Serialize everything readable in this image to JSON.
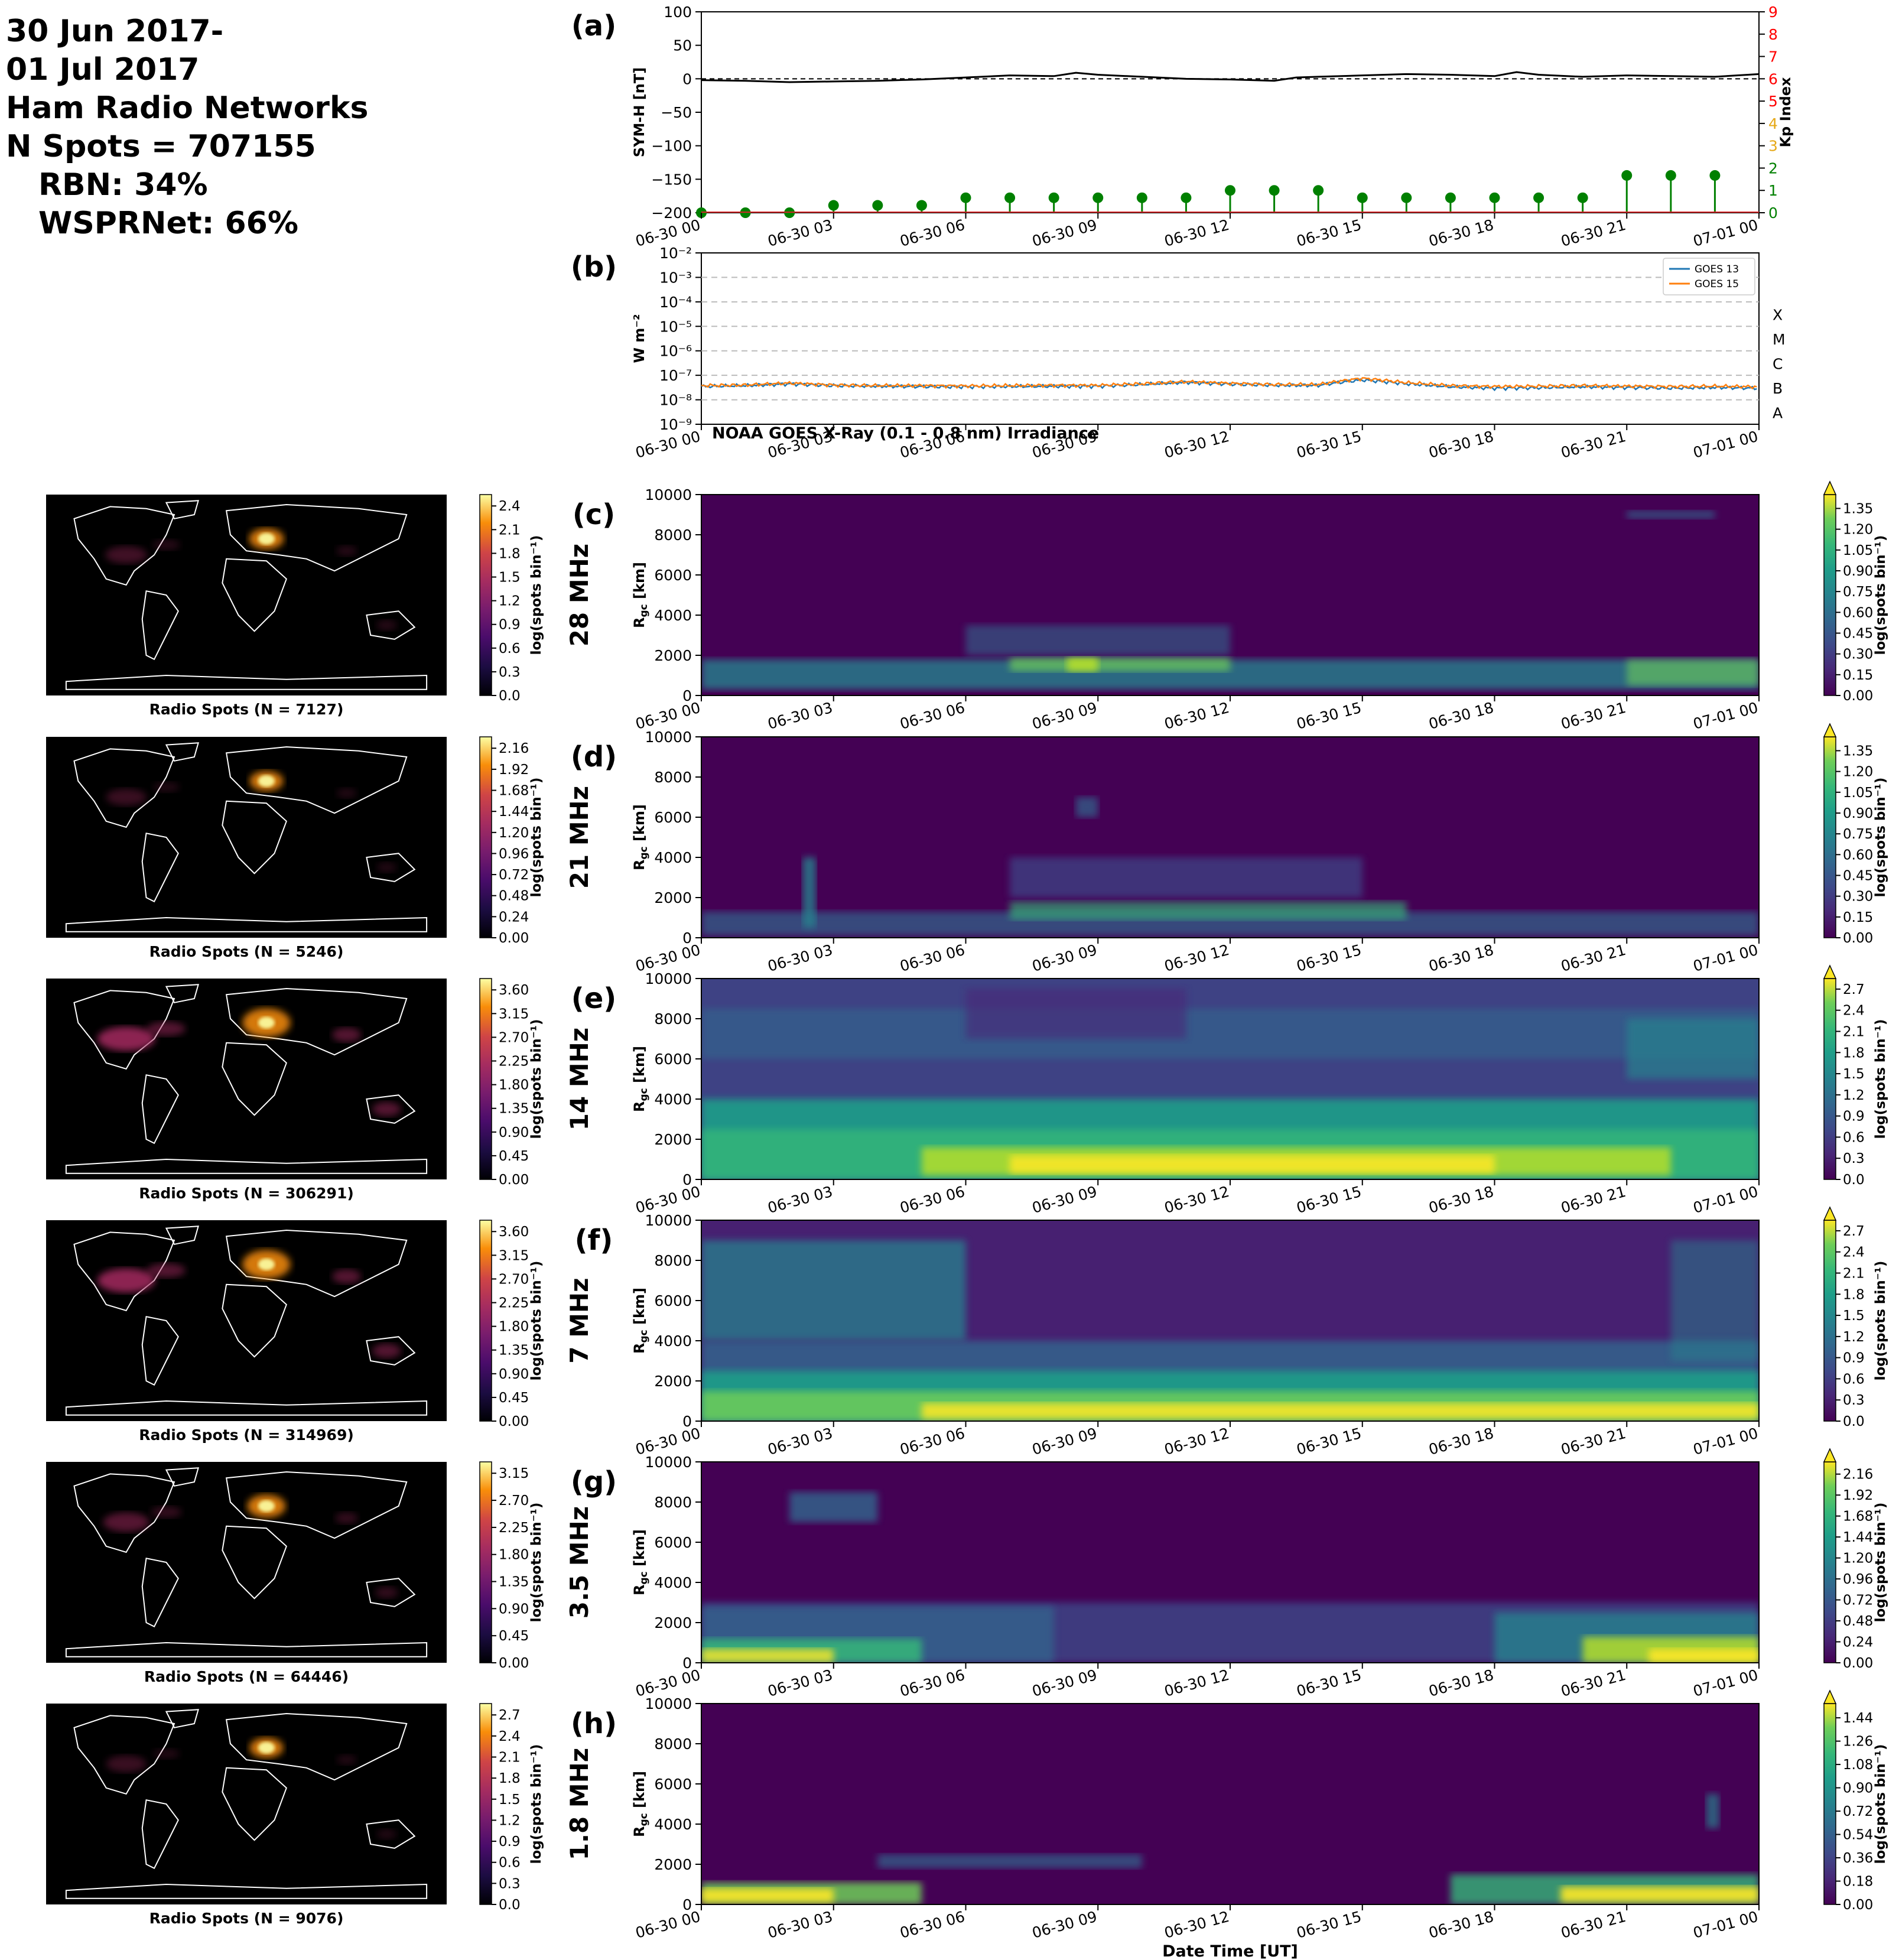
{
  "header": {
    "lines": [
      "30 Jun 2017-",
      "01 Jul 2017",
      "Ham Radio Networks",
      "N Spots = 707155",
      "RBN: 34%",
      "WSPRNet: 66%"
    ]
  },
  "colors": {
    "symh_line": "#000000",
    "kp_green": "#008000",
    "kp_axis_red": "#ff0000",
    "goes13": "#1f77b4",
    "goes15": "#ff7f0e",
    "map_coast": "#ffffff",
    "map_bg": "#000000"
  },
  "time_axis": {
    "tick_labels": [
      "06-30 00",
      "06-30 03",
      "06-30 06",
      "06-30 09",
      "06-30 12",
      "06-30 15",
      "06-30 18",
      "06-30 21",
      "07-01 00"
    ],
    "tick_hours": [
      0,
      3,
      6,
      9,
      12,
      15,
      18,
      21,
      24
    ],
    "xlabel": "Date Time [UT]"
  },
  "chart_data": [
    {
      "panel": "(a)",
      "type": "line",
      "ylabel": "SYM-H [nT]",
      "y2label": "Kp Index",
      "ylim": [
        -200,
        100
      ],
      "yticks": [
        100,
        50,
        0,
        -50,
        -100,
        -150,
        -200
      ],
      "y2lim": [
        0,
        9
      ],
      "y2ticks": [
        0,
        1,
        2,
        3,
        4,
        5,
        6,
        7,
        8,
        9
      ],
      "xlim_hours": [
        0,
        24
      ],
      "series": [
        {
          "kind": "symh",
          "x_hours": [
            0,
            1,
            2,
            3,
            4,
            5,
            6,
            7,
            8,
            8.5,
            9,
            10,
            11,
            12,
            13,
            13.5,
            14,
            15,
            16,
            17,
            18,
            18.5,
            19,
            20,
            21,
            22,
            23,
            24
          ],
          "values": [
            -2,
            -3,
            -5,
            -4,
            -3,
            -1,
            2,
            5,
            4,
            9,
            6,
            3,
            0,
            -1,
            -3,
            2,
            3,
            5,
            7,
            6,
            4,
            10,
            6,
            3,
            5,
            4,
            3,
            7
          ]
        },
        {
          "kind": "kp",
          "x_hours": [
            0,
            1,
            2,
            3,
            4,
            5,
            6,
            7,
            8,
            9,
            10,
            11,
            12,
            13,
            14,
            15,
            16,
            17,
            18,
            19,
            20,
            21,
            22,
            23
          ],
          "values": [
            0,
            0,
            0,
            0.33,
            0.33,
            0.33,
            0.67,
            0.67,
            0.67,
            0.67,
            0.67,
            0.67,
            1,
            1,
            1,
            0.67,
            0.67,
            0.67,
            0.67,
            0.67,
            0.67,
            1.67,
            1.67,
            1.67
          ]
        }
      ]
    },
    {
      "panel": "(b)",
      "type": "line",
      "scale": "log",
      "ylabel": "W m⁻²",
      "ylim": [
        1e-09,
        0.01
      ],
      "ytick_labels": [
        "10⁻²",
        "10⁻³",
        "10⁻⁴",
        "10⁻⁵",
        "10⁻⁶",
        "10⁻⁷",
        "10⁻⁸",
        "10⁻⁹"
      ],
      "class_labels": [
        "X",
        "M",
        "C",
        "B",
        "A"
      ],
      "annotation": "NOAA GOES X-Ray (0.1 - 0.8 nm) Irradiance",
      "legend": {
        "placement": "upper-right",
        "entries": [
          "GOES 13",
          "GOES 15"
        ]
      },
      "series": [
        {
          "name": "GOES 13",
          "x_hours": [
            0,
            1,
            2,
            3,
            4,
            5,
            6,
            7,
            8,
            9,
            10,
            11,
            12,
            13,
            14,
            15,
            16,
            17,
            18,
            19,
            20,
            21,
            22,
            23,
            24
          ],
          "values": [
            3.5e-08,
            3.8e-08,
            4.5e-08,
            3.8e-08,
            3.6e-08,
            3.5e-08,
            3.4e-08,
            3.5e-08,
            3.6e-08,
            3.6e-08,
            4.2e-08,
            5.2e-08,
            4.4e-08,
            3.9e-08,
            3.9e-08,
            6.5e-08,
            4.5e-08,
            3.4e-08,
            3e-08,
            3.1e-08,
            3.4e-08,
            3.2e-08,
            3e-08,
            3.2e-08,
            3e-08
          ]
        },
        {
          "name": "GOES 15",
          "x_hours": [
            0,
            1,
            2,
            3,
            4,
            5,
            6,
            7,
            8,
            9,
            10,
            11,
            12,
            13,
            14,
            15,
            16,
            17,
            18,
            19,
            20,
            21,
            22,
            23,
            24
          ],
          "values": [
            3.8e-08,
            4e-08,
            4.8e-08,
            4e-08,
            3.8e-08,
            3.8e-08,
            3.7e-08,
            3.8e-08,
            3.9e-08,
            3.9e-08,
            4.5e-08,
            5.5e-08,
            4.7e-08,
            4.2e-08,
            4.2e-08,
            7.5e-08,
            5e-08,
            3.8e-08,
            3.5e-08,
            3.6e-08,
            3.8e-08,
            3.6e-08,
            3.5e-08,
            3.6e-08,
            3.4e-08
          ]
        }
      ]
    },
    {
      "panel": "(c)",
      "band": "28 MHz",
      "type": "heatmap",
      "ylabel": "R_gc [km]",
      "ylim": [
        0,
        10000
      ],
      "yticks": [
        0,
        2000,
        4000,
        6000,
        8000,
        10000
      ],
      "cbar_label": "log(spots bin⁻¹)",
      "cbar_ticks": [
        "0.00",
        "0.15",
        "0.30",
        "0.45",
        "0.60",
        "0.75",
        "0.90",
        "1.05",
        "1.20",
        "1.35"
      ],
      "cbar_max": 1.45,
      "map_cbar_ticks": [
        "0.0",
        "0.3",
        "0.6",
        "0.9",
        "1.2",
        "1.5",
        "1.8",
        "2.1",
        "2.4"
      ],
      "map_caption": "Radio Spots (N = 7127)"
    },
    {
      "panel": "(d)",
      "band": "21 MHz",
      "type": "heatmap",
      "ylabel": "R_gc [km]",
      "ylim": [
        0,
        10000
      ],
      "yticks": [
        0,
        2000,
        4000,
        6000,
        8000,
        10000
      ],
      "cbar_label": "log(spots bin⁻¹)",
      "cbar_ticks": [
        "0.00",
        "0.15",
        "0.30",
        "0.45",
        "0.60",
        "0.75",
        "0.90",
        "1.05",
        "1.20",
        "1.35"
      ],
      "cbar_max": 1.45,
      "map_cbar_ticks": [
        "0.00",
        "0.24",
        "0.48",
        "0.72",
        "0.96",
        "1.20",
        "1.44",
        "1.68",
        "1.92",
        "2.16"
      ],
      "map_caption": "Radio Spots (N = 5246)"
    },
    {
      "panel": "(e)",
      "band": "14 MHz",
      "type": "heatmap",
      "ylabel": "R_gc [km]",
      "ylim": [
        0,
        10000
      ],
      "yticks": [
        0,
        2000,
        4000,
        6000,
        8000,
        10000
      ],
      "cbar_label": "log(spots bin⁻¹)",
      "cbar_ticks": [
        "0.0",
        "0.3",
        "0.6",
        "0.9",
        "1.2",
        "1.5",
        "1.8",
        "2.1",
        "2.4",
        "2.7"
      ],
      "cbar_max": 2.85,
      "map_cbar_ticks": [
        "0.00",
        "0.45",
        "0.90",
        "1.35",
        "1.80",
        "2.25",
        "2.70",
        "3.15",
        "3.60"
      ],
      "map_caption": "Radio Spots (N = 306291)"
    },
    {
      "panel": "(f)",
      "band": "7 MHz",
      "type": "heatmap",
      "ylabel": "R_gc [km]",
      "ylim": [
        0,
        10000
      ],
      "yticks": [
        0,
        2000,
        4000,
        6000,
        8000,
        10000
      ],
      "cbar_label": "log(spots bin⁻¹)",
      "cbar_ticks": [
        "0.0",
        "0.3",
        "0.6",
        "0.9",
        "1.2",
        "1.5",
        "1.8",
        "2.1",
        "2.4",
        "2.7"
      ],
      "cbar_max": 2.85,
      "map_cbar_ticks": [
        "0.00",
        "0.45",
        "0.90",
        "1.35",
        "1.80",
        "2.25",
        "2.70",
        "3.15",
        "3.60"
      ],
      "map_caption": "Radio Spots (N = 314969)"
    },
    {
      "panel": "(g)",
      "band": "3.5 MHz",
      "type": "heatmap",
      "ylabel": "R_gc [km]",
      "ylim": [
        0,
        10000
      ],
      "yticks": [
        0,
        2000,
        4000,
        6000,
        8000,
        10000
      ],
      "cbar_label": "log(spots bin⁻¹)",
      "cbar_ticks": [
        "0.00",
        "0.24",
        "0.48",
        "0.72",
        "0.96",
        "1.20",
        "1.44",
        "1.68",
        "1.92",
        "2.16"
      ],
      "cbar_max": 2.3,
      "map_cbar_ticks": [
        "0.00",
        "0.45",
        "0.90",
        "1.35",
        "1.80",
        "2.25",
        "2.70",
        "3.15"
      ],
      "map_caption": "Radio Spots (N = 64446)"
    },
    {
      "panel": "(h)",
      "band": "1.8 MHz",
      "type": "heatmap",
      "ylabel": "R_gc [km]",
      "ylim": [
        0,
        10000
      ],
      "yticks": [
        0,
        2000,
        4000,
        6000,
        8000,
        10000
      ],
      "cbar_label": "log(spots bin⁻¹)",
      "cbar_ticks": [
        "0.00",
        "0.18",
        "0.36",
        "0.54",
        "0.72",
        "0.90",
        "1.08",
        "1.26",
        "1.44"
      ],
      "cbar_max": 1.55,
      "map_cbar_ticks": [
        "0.0",
        "0.3",
        "0.6",
        "0.9",
        "1.2",
        "1.5",
        "1.8",
        "2.1",
        "2.4",
        "2.7"
      ],
      "map_caption": "Radio Spots (N = 9076)"
    }
  ]
}
